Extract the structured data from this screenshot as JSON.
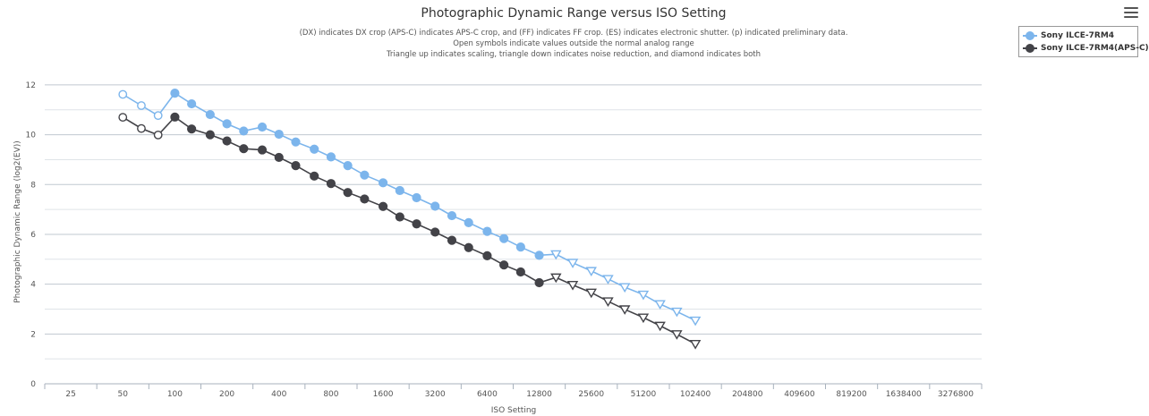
{
  "chart_data": {
    "type": "line",
    "title": "Photographic Dynamic Range versus ISO Setting",
    "subtitle_lines": [
      "(DX) indicates DX crop (APS-C) indicates APS-C crop, and (FF) indicates FF crop. (ES) indicates electronic shutter. (p) indicated preliminary data.",
      "Open symbols indicate values outside the normal analog range",
      "Triangle up indicates scaling, triangle down indicates noise reduction, and diamond indicates both"
    ],
    "xlabel": "ISO Setting",
    "ylabel": "Photographic Dynamic Range (log2(EV))",
    "x_scale": "log2",
    "x_tick_labels": [
      "25",
      "50",
      "100",
      "200",
      "400",
      "800",
      "1600",
      "3200",
      "6400",
      "12800",
      "25600",
      "51200",
      "102400",
      "204800",
      "409600",
      "819200",
      "1638400",
      "3276800"
    ],
    "y_ticks": [
      0,
      2,
      4,
      6,
      8,
      10,
      12
    ],
    "ylim": [
      0,
      12.5
    ],
    "grid": true,
    "legend_position": "top-right",
    "series": [
      {
        "name": "Sony ILCE-7RM4",
        "color": "#7cb5ec",
        "points": [
          {
            "x": 50,
            "y": 11.62,
            "m": "open"
          },
          {
            "x": 64,
            "y": 11.17,
            "m": "open"
          },
          {
            "x": 80,
            "y": 10.77,
            "m": "open"
          },
          {
            "x": 100,
            "y": 11.67,
            "m": "filled"
          },
          {
            "x": 125,
            "y": 11.24,
            "m": "filled"
          },
          {
            "x": 160,
            "y": 10.81,
            "m": "filled"
          },
          {
            "x": 200,
            "y": 10.44,
            "m": "filled"
          },
          {
            "x": 250,
            "y": 10.15,
            "m": "filled"
          },
          {
            "x": 320,
            "y": 10.31,
            "m": "filled"
          },
          {
            "x": 400,
            "y": 10.02,
            "m": "filled"
          },
          {
            "x": 500,
            "y": 9.71,
            "m": "filled"
          },
          {
            "x": 640,
            "y": 9.42,
            "m": "filled"
          },
          {
            "x": 800,
            "y": 9.11,
            "m": "filled"
          },
          {
            "x": 1000,
            "y": 8.76,
            "m": "filled"
          },
          {
            "x": 1250,
            "y": 8.38,
            "m": "filled"
          },
          {
            "x": 1600,
            "y": 8.07,
            "m": "filled"
          },
          {
            "x": 2000,
            "y": 7.76,
            "m": "filled"
          },
          {
            "x": 2500,
            "y": 7.47,
            "m": "filled"
          },
          {
            "x": 3200,
            "y": 7.13,
            "m": "filled"
          },
          {
            "x": 4000,
            "y": 6.75,
            "m": "filled"
          },
          {
            "x": 5000,
            "y": 6.47,
            "m": "filled"
          },
          {
            "x": 6400,
            "y": 6.12,
            "m": "filled"
          },
          {
            "x": 8000,
            "y": 5.83,
            "m": "filled"
          },
          {
            "x": 10000,
            "y": 5.49,
            "m": "filled"
          },
          {
            "x": 12800,
            "y": 5.16,
            "m": "filled"
          },
          {
            "x": 16000,
            "y": 5.2,
            "m": "tri-down"
          },
          {
            "x": 20000,
            "y": 4.86,
            "m": "tri-down"
          },
          {
            "x": 25600,
            "y": 4.53,
            "m": "tri-down"
          },
          {
            "x": 32000,
            "y": 4.21,
            "m": "tri-down"
          },
          {
            "x": 40000,
            "y": 3.88,
            "m": "tri-down"
          },
          {
            "x": 51200,
            "y": 3.58,
            "m": "tri-down"
          },
          {
            "x": 64000,
            "y": 3.2,
            "m": "tri-down"
          },
          {
            "x": 80000,
            "y": 2.9,
            "m": "tri-down"
          },
          {
            "x": 102400,
            "y": 2.54,
            "m": "tri-down"
          }
        ]
      },
      {
        "name": "Sony ILCE-7RM4(APS-C)",
        "color": "#434348",
        "points": [
          {
            "x": 50,
            "y": 10.7,
            "m": "open"
          },
          {
            "x": 64,
            "y": 10.25,
            "m": "open"
          },
          {
            "x": 80,
            "y": 9.99,
            "m": "open"
          },
          {
            "x": 100,
            "y": 10.71,
            "m": "filled"
          },
          {
            "x": 125,
            "y": 10.23,
            "m": "filled"
          },
          {
            "x": 160,
            "y": 10.0,
            "m": "filled"
          },
          {
            "x": 200,
            "y": 9.75,
            "m": "filled"
          },
          {
            "x": 250,
            "y": 9.44,
            "m": "filled"
          },
          {
            "x": 320,
            "y": 9.39,
            "m": "filled"
          },
          {
            "x": 400,
            "y": 9.09,
            "m": "filled"
          },
          {
            "x": 500,
            "y": 8.76,
            "m": "filled"
          },
          {
            "x": 640,
            "y": 8.34,
            "m": "filled"
          },
          {
            "x": 800,
            "y": 8.04,
            "m": "filled"
          },
          {
            "x": 1000,
            "y": 7.68,
            "m": "filled"
          },
          {
            "x": 1250,
            "y": 7.42,
            "m": "filled"
          },
          {
            "x": 1600,
            "y": 7.12,
            "m": "filled"
          },
          {
            "x": 2000,
            "y": 6.7,
            "m": "filled"
          },
          {
            "x": 2500,
            "y": 6.42,
            "m": "filled"
          },
          {
            "x": 3200,
            "y": 6.09,
            "m": "filled"
          },
          {
            "x": 4000,
            "y": 5.76,
            "m": "filled"
          },
          {
            "x": 5000,
            "y": 5.47,
            "m": "filled"
          },
          {
            "x": 6400,
            "y": 5.14,
            "m": "filled"
          },
          {
            "x": 8000,
            "y": 4.77,
            "m": "filled"
          },
          {
            "x": 10000,
            "y": 4.49,
            "m": "filled"
          },
          {
            "x": 12800,
            "y": 4.06,
            "m": "filled"
          },
          {
            "x": 16000,
            "y": 4.27,
            "m": "tri-down"
          },
          {
            "x": 20000,
            "y": 3.97,
            "m": "tri-down"
          },
          {
            "x": 25600,
            "y": 3.66,
            "m": "tri-down"
          },
          {
            "x": 32000,
            "y": 3.31,
            "m": "tri-down"
          },
          {
            "x": 40000,
            "y": 2.99,
            "m": "tri-down"
          },
          {
            "x": 51200,
            "y": 2.66,
            "m": "tri-down"
          },
          {
            "x": 64000,
            "y": 2.33,
            "m": "tri-down"
          },
          {
            "x": 80000,
            "y": 1.99,
            "m": "tri-down"
          },
          {
            "x": 102400,
            "y": 1.6,
            "m": "tri-down"
          }
        ]
      }
    ]
  }
}
